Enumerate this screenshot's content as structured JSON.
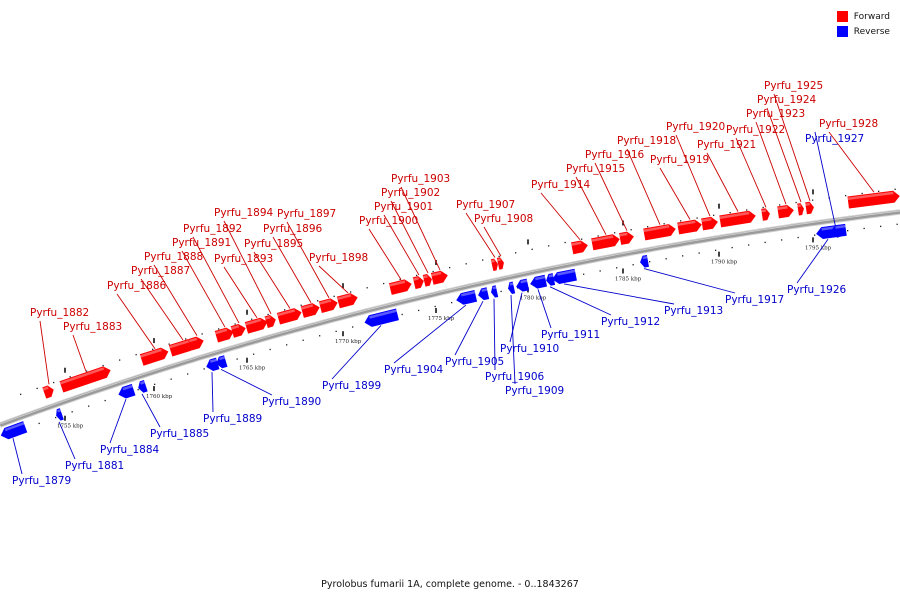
{
  "legend": {
    "forward_label": "Forward",
    "reverse_label": "Reverse",
    "forward_color": "#ff0000",
    "reverse_color": "#0000ff"
  },
  "caption": "Pyrolobus fumarii 1A, complete genome. - 0..1843267",
  "colors": {
    "forward_fill": "#ff0000",
    "reverse_fill": "#0000ff",
    "forward_label": "#cc0000",
    "reverse_label": "#0000cc",
    "backbone": "#9a9a9a"
  },
  "ticks": [
    "1755 kbp",
    "1760 kbp",
    "1765 kbp",
    "1770 kbp",
    "1775 kbp",
    "1780 kbp",
    "1785 kbp",
    "1790 kbp",
    "1795 kbp"
  ],
  "genes": [
    {
      "name": "Pyrfu_1879",
      "strand": "reverse"
    },
    {
      "name": "Pyrfu_1881",
      "strand": "reverse"
    },
    {
      "name": "Pyrfu_1882",
      "strand": "forward"
    },
    {
      "name": "Pyrfu_1883",
      "strand": "forward"
    },
    {
      "name": "Pyrfu_1884",
      "strand": "reverse"
    },
    {
      "name": "Pyrfu_1885",
      "strand": "reverse"
    },
    {
      "name": "Pyrfu_1886",
      "strand": "forward"
    },
    {
      "name": "Pyrfu_1887",
      "strand": "forward"
    },
    {
      "name": "Pyrfu_1888",
      "strand": "forward"
    },
    {
      "name": "Pyrfu_1889",
      "strand": "reverse"
    },
    {
      "name": "Pyrfu_1890",
      "strand": "reverse"
    },
    {
      "name": "Pyrfu_1891",
      "strand": "forward"
    },
    {
      "name": "Pyrfu_1892",
      "strand": "forward"
    },
    {
      "name": "Pyrfu_1893",
      "strand": "forward"
    },
    {
      "name": "Pyrfu_1894",
      "strand": "forward"
    },
    {
      "name": "Pyrfu_1895",
      "strand": "forward"
    },
    {
      "name": "Pyrfu_1896",
      "strand": "forward"
    },
    {
      "name": "Pyrfu_1897",
      "strand": "forward"
    },
    {
      "name": "Pyrfu_1898",
      "strand": "forward"
    },
    {
      "name": "Pyrfu_1899",
      "strand": "reverse"
    },
    {
      "name": "Pyrfu_1900",
      "strand": "forward"
    },
    {
      "name": "Pyrfu_1901",
      "strand": "forward"
    },
    {
      "name": "Pyrfu_1902",
      "strand": "forward"
    },
    {
      "name": "Pyrfu_1903",
      "strand": "forward"
    },
    {
      "name": "Pyrfu_1904",
      "strand": "reverse"
    },
    {
      "name": "Pyrfu_1905",
      "strand": "reverse"
    },
    {
      "name": "Pyrfu_1906",
      "strand": "reverse"
    },
    {
      "name": "Pyrfu_1907",
      "strand": "forward"
    },
    {
      "name": "Pyrfu_1908",
      "strand": "forward"
    },
    {
      "name": "Pyrfu_1909",
      "strand": "reverse"
    },
    {
      "name": "Pyrfu_1910",
      "strand": "reverse"
    },
    {
      "name": "Pyrfu_1911",
      "strand": "reverse"
    },
    {
      "name": "Pyrfu_1912",
      "strand": "reverse"
    },
    {
      "name": "Pyrfu_1913",
      "strand": "reverse"
    },
    {
      "name": "Pyrfu_1914",
      "strand": "forward"
    },
    {
      "name": "Pyrfu_1915",
      "strand": "forward"
    },
    {
      "name": "Pyrfu_1916",
      "strand": "forward"
    },
    {
      "name": "Pyrfu_1917",
      "strand": "reverse"
    },
    {
      "name": "Pyrfu_1918",
      "strand": "forward"
    },
    {
      "name": "Pyrfu_1919",
      "strand": "forward"
    },
    {
      "name": "Pyrfu_1920",
      "strand": "forward"
    },
    {
      "name": "Pyrfu_1921",
      "strand": "forward"
    },
    {
      "name": "Pyrfu_1922",
      "strand": "forward"
    },
    {
      "name": "Pyrfu_1923",
      "strand": "forward"
    },
    {
      "name": "Pyrfu_1924",
      "strand": "forward"
    },
    {
      "name": "Pyrfu_1925",
      "strand": "forward"
    },
    {
      "name": "Pyrfu_1926",
      "strand": "reverse"
    },
    {
      "name": "Pyrfu_1927",
      "strand": "reverse"
    },
    {
      "name": "Pyrfu_1928",
      "strand": "forward"
    }
  ]
}
